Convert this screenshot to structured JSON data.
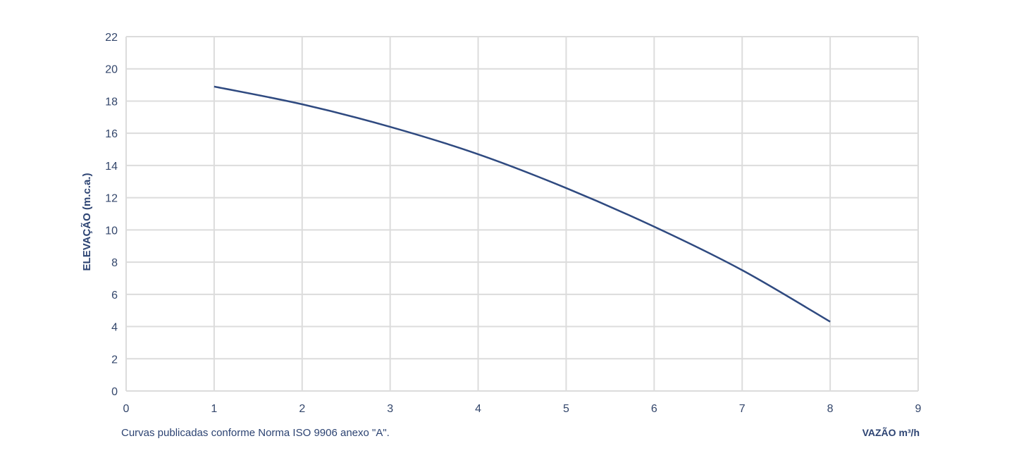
{
  "chart_data": {
    "type": "line",
    "xlabel": "VAZÃO m³/h",
    "ylabel": "ELEVAÇÃO (m.c.a.)",
    "xlim": [
      0,
      9
    ],
    "ylim": [
      0,
      22
    ],
    "x_ticks": [
      "0",
      "1",
      "2",
      "3",
      "4",
      "5",
      "6",
      "7",
      "8",
      "9"
    ],
    "y_ticks": [
      "0",
      "2",
      "4",
      "6",
      "8",
      "10",
      "12",
      "14",
      "16",
      "18",
      "20",
      "22"
    ],
    "grid": true,
    "series": [
      {
        "color": "#2f4a80",
        "x": [
          1,
          2,
          3,
          4,
          5,
          6,
          7,
          8
        ],
        "y": [
          18.9,
          17.8,
          16.4,
          14.7,
          12.6,
          10.2,
          7.5,
          4.3
        ]
      }
    ],
    "annotation": "Curvas publicadas conforme Norma ISO 9906 anexo \"A\"."
  }
}
